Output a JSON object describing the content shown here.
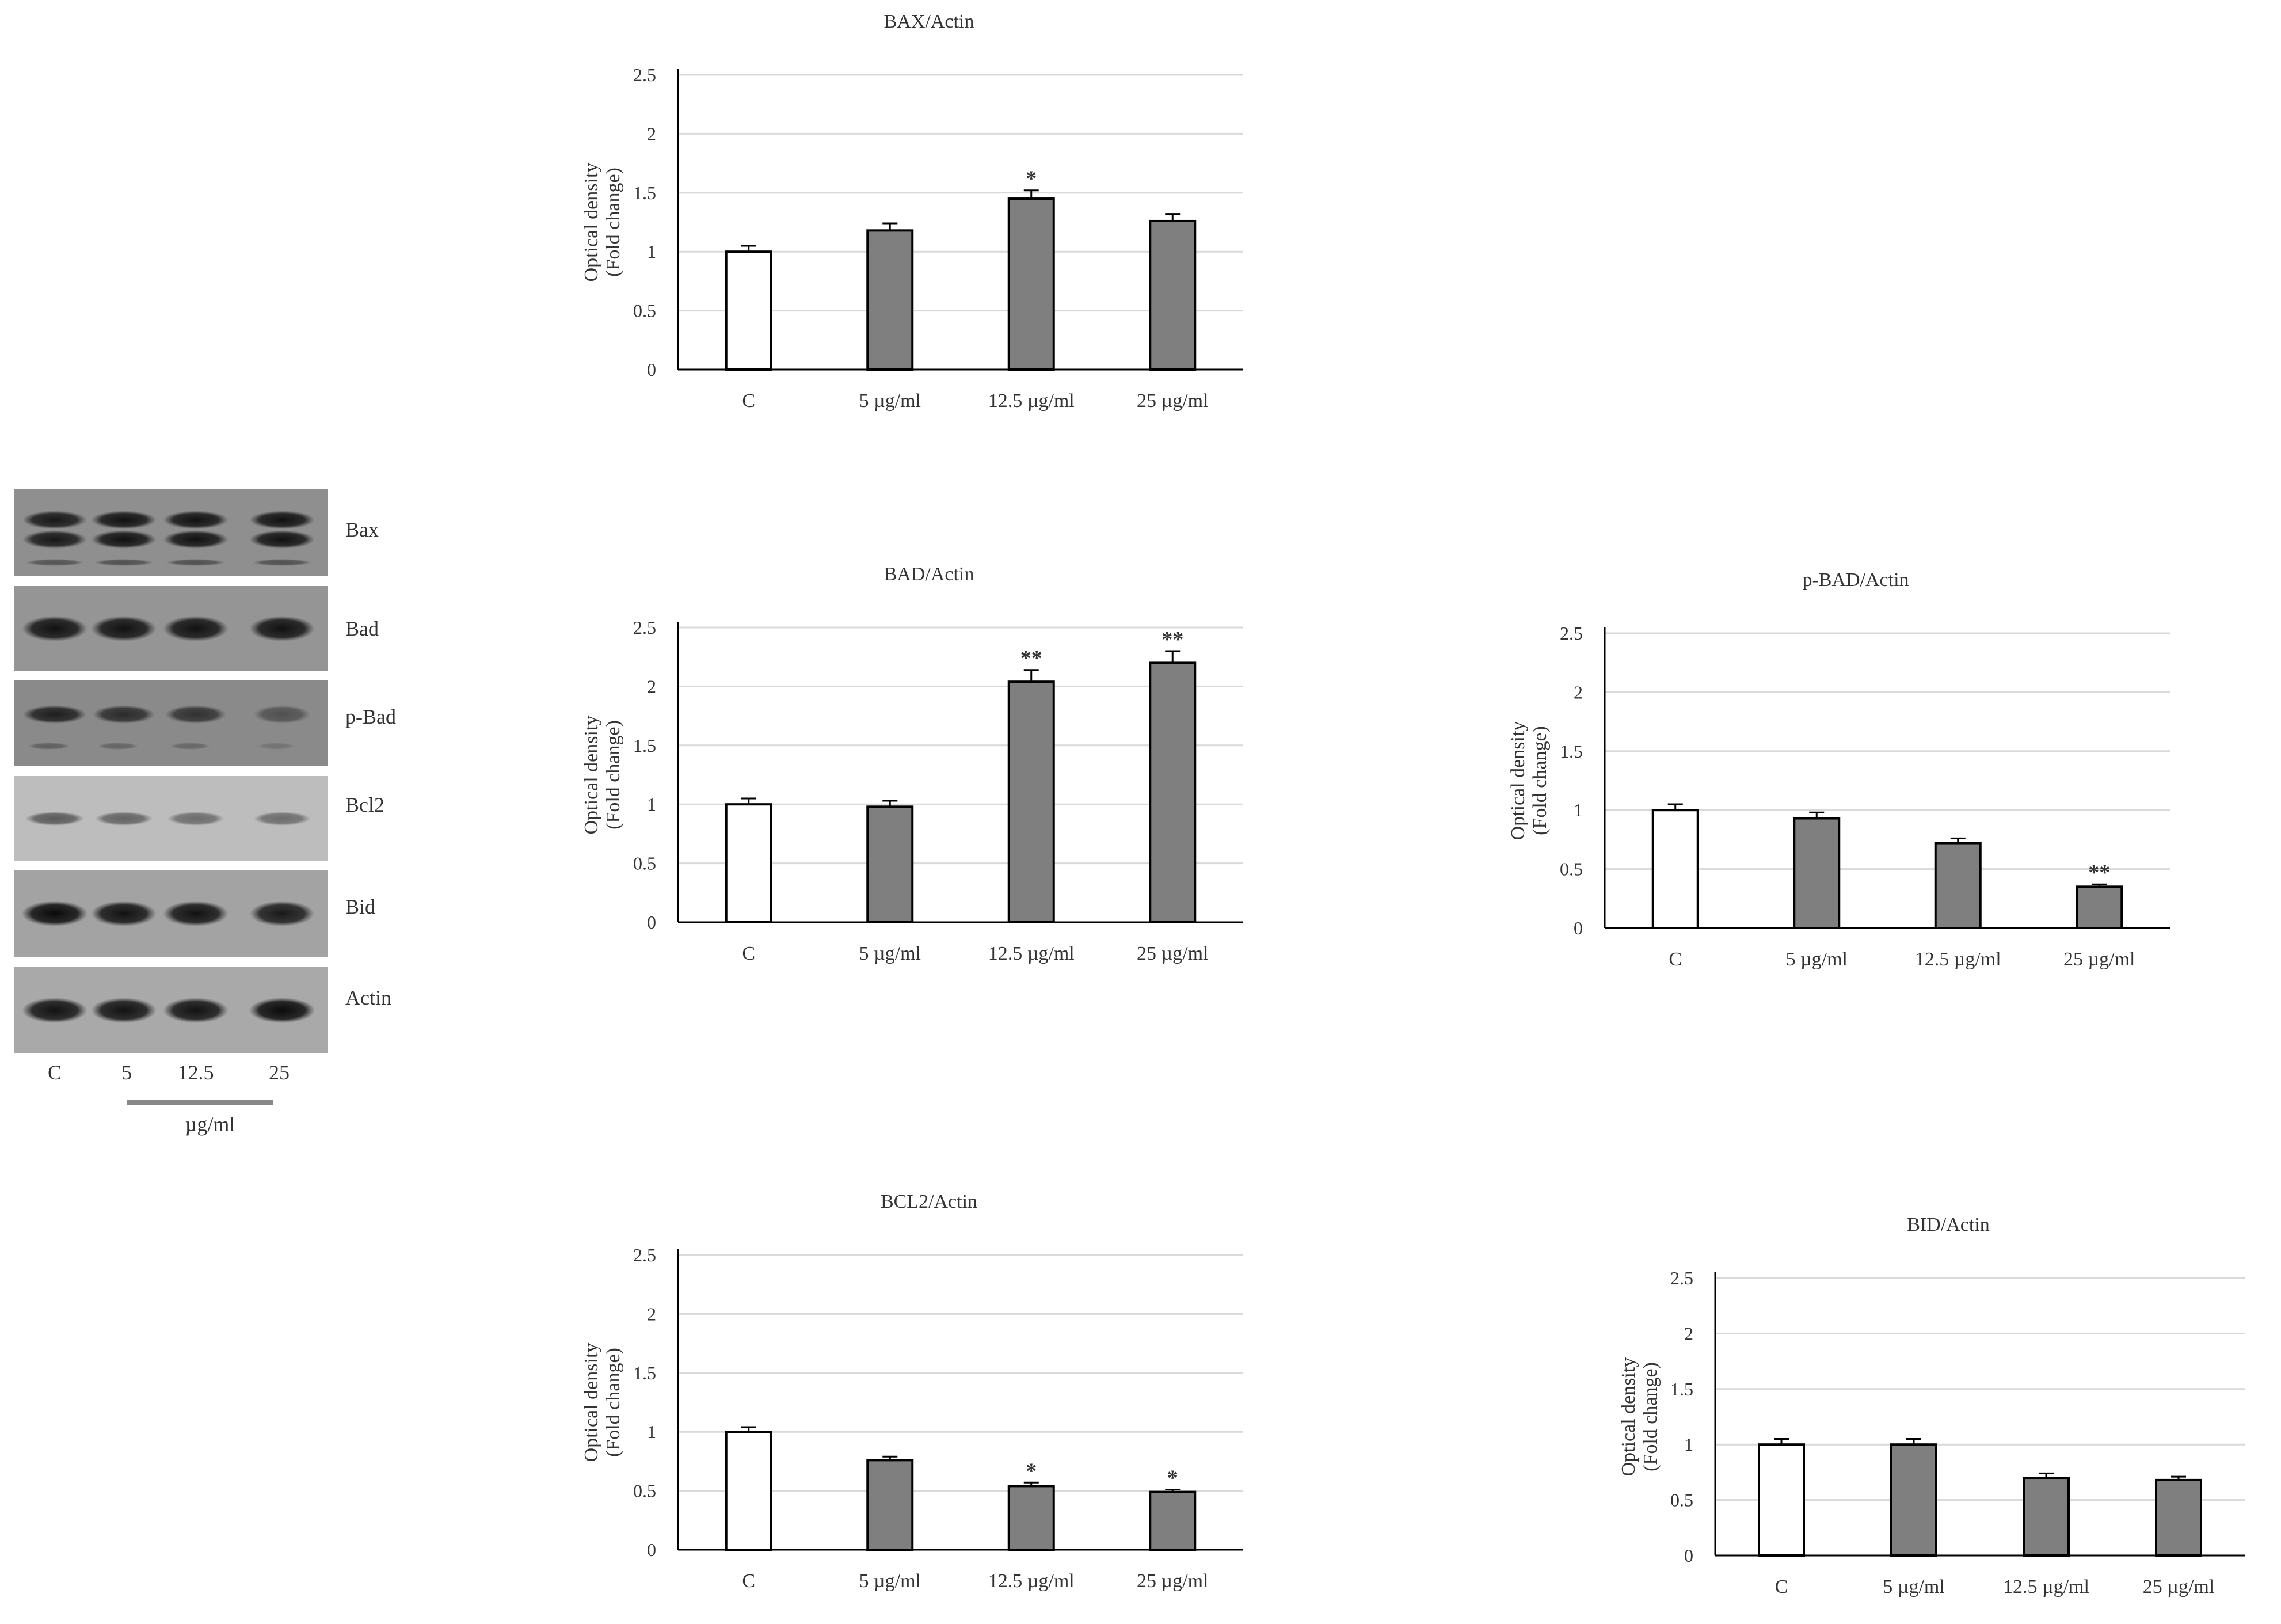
{
  "blot": {
    "rows": [
      "Bax",
      "Bad",
      "p-Bad",
      "Bcl2",
      "Bid",
      "Actin"
    ],
    "lanes": [
      "C",
      "5",
      "12.5",
      "25"
    ],
    "unit": "µg/ml",
    "band_intensity": {
      "Bax": [
        0.9,
        0.95,
        0.95,
        0.95
      ],
      "Bad": [
        0.95,
        0.95,
        0.95,
        0.95
      ],
      "p-Bad": [
        0.85,
        0.75,
        0.7,
        0.45
      ],
      "Bcl2": [
        0.55,
        0.5,
        0.45,
        0.45
      ],
      "Bid": [
        1.0,
        0.95,
        0.95,
        0.9
      ],
      "Actin": [
        0.95,
        0.95,
        0.95,
        1.0
      ]
    }
  },
  "chart_data": [
    {
      "type": "bar",
      "title": "BAX/Actin",
      "ylabel": "Optical density (Fold change)",
      "ylabel_lines": [
        "Optical density",
        "(Fold change)"
      ],
      "categories": [
        "C",
        "5 µg/ml",
        "12.5 µg/ml",
        "25 µg/ml"
      ],
      "values": [
        1.0,
        1.18,
        1.45,
        1.26
      ],
      "errors": [
        0.05,
        0.06,
        0.07,
        0.06
      ],
      "significance": [
        "",
        "",
        "*",
        ""
      ],
      "bar_colors": [
        "#ffffff",
        "#7f7f7f",
        "#7f7f7f",
        "#7f7f7f"
      ],
      "ylim": [
        0,
        2.5
      ],
      "yticks": [
        0,
        0.5,
        1,
        1.5,
        2,
        2.5
      ],
      "ytick_labels": [
        "0",
        "0.5",
        "1",
        "1.5",
        "2",
        "2.5"
      ]
    },
    {
      "type": "bar",
      "title": "BAD/Actin",
      "ylabel": "Optical density (Fold change)",
      "ylabel_lines": [
        "Optical density",
        "(Fold change)"
      ],
      "categories": [
        "C",
        "5 µg/ml",
        "12.5 µg/ml",
        "25 µg/ml"
      ],
      "values": [
        1.0,
        0.98,
        2.04,
        2.2
      ],
      "errors": [
        0.05,
        0.05,
        0.1,
        0.1
      ],
      "significance": [
        "",
        "",
        "**",
        "**"
      ],
      "bar_colors": [
        "#ffffff",
        "#7f7f7f",
        "#7f7f7f",
        "#7f7f7f"
      ],
      "ylim": [
        0,
        2.5
      ],
      "yticks": [
        0,
        0.5,
        1,
        1.5,
        2,
        2.5
      ],
      "ytick_labels": [
        "0",
        "0.5",
        "1",
        "1.5",
        "2",
        "2.5"
      ]
    },
    {
      "type": "bar",
      "title": "p-BAD/Actin",
      "ylabel": "Optical density (Fold change)",
      "ylabel_lines": [
        "Optical density",
        "(Fold change)"
      ],
      "categories": [
        "C",
        "5 µg/ml",
        "12.5 µg/ml",
        "25 µg/ml"
      ],
      "values": [
        1.0,
        0.93,
        0.72,
        0.35
      ],
      "errors": [
        0.05,
        0.05,
        0.04,
        0.02
      ],
      "significance": [
        "",
        "",
        "",
        "**"
      ],
      "bar_colors": [
        "#ffffff",
        "#7f7f7f",
        "#7f7f7f",
        "#7f7f7f"
      ],
      "ylim": [
        0,
        2.5
      ],
      "yticks": [
        0,
        0.5,
        1,
        1.5,
        2,
        2.5
      ],
      "ytick_labels": [
        "0",
        "0.5",
        "1",
        "1.5",
        "2",
        "2.5"
      ]
    },
    {
      "type": "bar",
      "title": "BCL2/Actin",
      "ylabel": "Optical density (Fold change)",
      "ylabel_lines": [
        "Optical density",
        "(Fold change)"
      ],
      "categories": [
        "C",
        "5 µg/ml",
        "12.5 µg/ml",
        "25 µg/ml"
      ],
      "values": [
        1.0,
        0.76,
        0.54,
        0.49
      ],
      "errors": [
        0.04,
        0.03,
        0.03,
        0.02
      ],
      "significance": [
        "",
        "",
        "*",
        "*"
      ],
      "bar_colors": [
        "#ffffff",
        "#7f7f7f",
        "#7f7f7f",
        "#7f7f7f"
      ],
      "ylim": [
        0,
        2.5
      ],
      "yticks": [
        0,
        0.5,
        1,
        1.5,
        2,
        2.5
      ],
      "ytick_labels": [
        "0",
        "0.5",
        "1",
        "1.5",
        "2",
        "2.5"
      ]
    },
    {
      "type": "bar",
      "title": "BID/Actin",
      "ylabel": "Optical density (Fold change)",
      "ylabel_lines": [
        "Optical density",
        "(Fold change)"
      ],
      "categories": [
        "C",
        "5 µg/ml",
        "12.5 µg/ml",
        "25 µg/ml"
      ],
      "values": [
        1.0,
        1.0,
        0.7,
        0.68
      ],
      "errors": [
        0.05,
        0.05,
        0.04,
        0.03
      ],
      "significance": [
        "",
        "",
        "",
        ""
      ],
      "bar_colors": [
        "#ffffff",
        "#7f7f7f",
        "#7f7f7f",
        "#7f7f7f"
      ],
      "ylim": [
        0,
        2.5
      ],
      "yticks": [
        0,
        0.5,
        1,
        1.5,
        2,
        2.5
      ],
      "ytick_labels": [
        "0",
        "0.5",
        "1",
        "1.5",
        "2",
        "2.5"
      ]
    }
  ]
}
